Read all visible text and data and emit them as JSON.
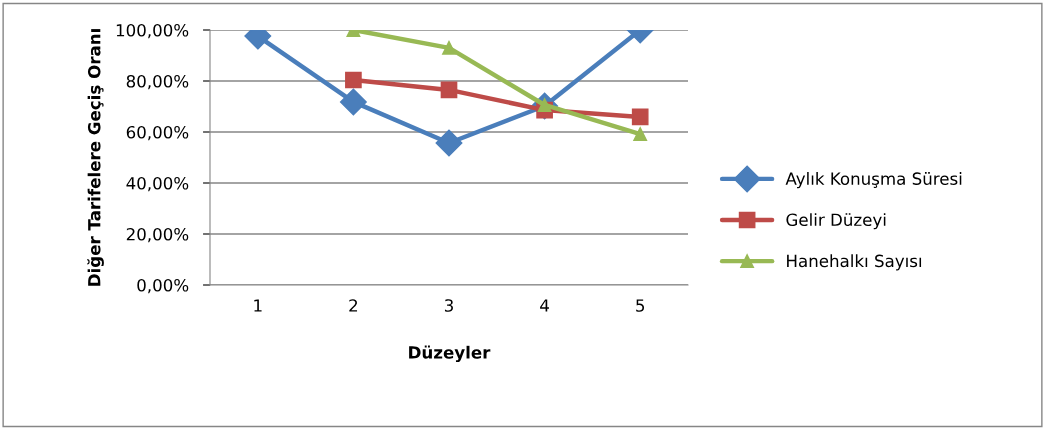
{
  "chart_data": {
    "type": "line",
    "xlabel": "Düzeyler",
    "ylabel": "Diğer Tarifelere Geçiş Oranı",
    "categories": [
      "1",
      "2",
      "3",
      "4",
      "5"
    ],
    "series": [
      {
        "name": "Aylık Konuşma Süresi",
        "color": "#4a7ebb",
        "marker": "diamond",
        "values": [
          97.6,
          71.8,
          55.7,
          70.2,
          100
        ]
      },
      {
        "name": "Gelir Düzeyi",
        "color": "#be4b48",
        "marker": "square",
        "values": [
          null,
          80.4,
          76.5,
          68.6,
          65.9
        ]
      },
      {
        "name": "Hanehalkı Sayısı",
        "color": "#98b954",
        "marker": "triangle",
        "values": [
          null,
          100,
          93,
          70.6,
          59.2
        ]
      }
    ],
    "ylim": [
      0,
      100
    ],
    "yticks": [
      {
        "value": 0,
        "label": "0,00%"
      },
      {
        "value": 20,
        "label": "20,00%"
      },
      {
        "value": 40,
        "label": "40,00%"
      },
      {
        "value": 60,
        "label": "60,00%"
      },
      {
        "value": 80,
        "label": "80,00%"
      },
      {
        "value": 100,
        "label": "100,00%"
      }
    ],
    "grid": "y",
    "legend": "right",
    "line_style": "solid"
  }
}
